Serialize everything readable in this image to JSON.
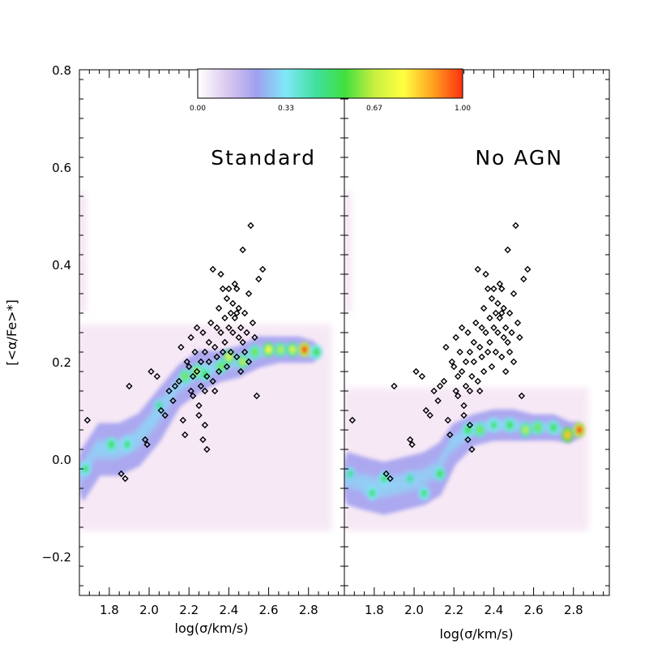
{
  "chart_data": {
    "type": "scatter",
    "ylabel": "[<α/Fe>*]",
    "ylim": [
      -0.28,
      0.8
    ],
    "yticks": [
      {
        "value": -0.2,
        "label": "−0.2"
      },
      {
        "value": 0.0,
        "label": "0.0"
      },
      {
        "value": 0.2,
        "label": "0.2"
      },
      {
        "value": 0.4,
        "label": "0.4"
      },
      {
        "value": 0.6,
        "label": "0.6"
      },
      {
        "value": 0.8,
        "label": "0.8"
      }
    ],
    "colorbar": {
      "ticks": [
        "0.00",
        "0.33",
        "0.67",
        "1.00"
      ],
      "colors": [
        "#ffffff",
        "#dcc8f0",
        "#a0a0f0",
        "#80e8f8",
        "#40e0a0",
        "#40e040",
        "#c8f040",
        "#ffff40",
        "#ffa020",
        "#ff3010"
      ]
    },
    "panels": [
      {
        "name": "standard",
        "title": "Standard",
        "xlabel": "log(σ/km/s)",
        "xlim": [
          1.65,
          2.98
        ],
        "xticks": [
          {
            "value": 1.8,
            "label": "1.8"
          },
          {
            "value": 2.0,
            "label": "2.0"
          },
          {
            "value": 2.2,
            "label": "2.2"
          },
          {
            "value": 2.4,
            "label": "2.4"
          },
          {
            "value": 2.6,
            "label": "2.6"
          },
          {
            "value": 2.8,
            "label": "2.8"
          }
        ],
        "model_ridge": [
          {
            "x": 1.67,
            "y": -0.03,
            "w": 0.05
          },
          {
            "x": 1.75,
            "y": 0.02,
            "w": 0.05
          },
          {
            "x": 1.85,
            "y": 0.02,
            "w": 0.05
          },
          {
            "x": 1.95,
            "y": 0.04,
            "w": 0.05
          },
          {
            "x": 2.05,
            "y": 0.09,
            "w": 0.05
          },
          {
            "x": 2.15,
            "y": 0.15,
            "w": 0.04
          },
          {
            "x": 2.25,
            "y": 0.18,
            "w": 0.04
          },
          {
            "x": 2.35,
            "y": 0.19,
            "w": 0.03
          },
          {
            "x": 2.45,
            "y": 0.2,
            "w": 0.03
          },
          {
            "x": 2.55,
            "y": 0.22,
            "w": 0.03
          },
          {
            "x": 2.65,
            "y": 0.225,
            "w": 0.025
          },
          {
            "x": 2.75,
            "y": 0.225,
            "w": 0.025
          },
          {
            "x": 2.83,
            "y": 0.22,
            "w": 0.02
          }
        ],
        "peaks": [
          {
            "x": 1.68,
            "y": -0.02,
            "v": 0.5
          },
          {
            "x": 1.81,
            "y": 0.03,
            "v": 0.55
          },
          {
            "x": 1.89,
            "y": 0.03,
            "v": 0.5
          },
          {
            "x": 2.05,
            "y": 0.11,
            "v": 0.45
          },
          {
            "x": 2.18,
            "y": 0.17,
            "v": 0.6
          },
          {
            "x": 2.24,
            "y": 0.18,
            "v": 0.65
          },
          {
            "x": 2.28,
            "y": 0.175,
            "v": 0.55
          },
          {
            "x": 2.36,
            "y": 0.19,
            "v": 0.6
          },
          {
            "x": 2.4,
            "y": 0.21,
            "v": 0.7
          },
          {
            "x": 2.47,
            "y": 0.2,
            "v": 0.65
          },
          {
            "x": 2.53,
            "y": 0.22,
            "v": 0.6
          },
          {
            "x": 2.6,
            "y": 0.225,
            "v": 0.75
          },
          {
            "x": 2.66,
            "y": 0.225,
            "v": 0.65
          },
          {
            "x": 2.72,
            "y": 0.225,
            "v": 0.7
          },
          {
            "x": 2.78,
            "y": 0.225,
            "v": 1.0
          },
          {
            "x": 2.84,
            "y": 0.22,
            "v": 0.55
          }
        ],
        "observations": [
          {
            "x": 1.69,
            "y": 0.08
          },
          {
            "x": 1.86,
            "y": -0.03
          },
          {
            "x": 1.88,
            "y": -0.04
          },
          {
            "x": 1.9,
            "y": 0.15
          },
          {
            "x": 1.98,
            "y": 0.04
          },
          {
            "x": 1.99,
            "y": 0.03
          },
          {
            "x": 2.01,
            "y": 0.18
          },
          {
            "x": 2.04,
            "y": 0.17
          },
          {
            "x": 2.06,
            "y": 0.1
          },
          {
            "x": 2.08,
            "y": 0.09
          },
          {
            "x": 2.1,
            "y": 0.14
          },
          {
            "x": 2.12,
            "y": 0.12
          },
          {
            "x": 2.13,
            "y": 0.15
          },
          {
            "x": 2.15,
            "y": 0.16
          },
          {
            "x": 2.16,
            "y": 0.23
          },
          {
            "x": 2.17,
            "y": 0.08
          },
          {
            "x": 2.18,
            "y": 0.05
          },
          {
            "x": 2.2,
            "y": 0.19
          },
          {
            "x": 2.21,
            "y": 0.14
          },
          {
            "x": 2.21,
            "y": 0.25
          },
          {
            "x": 2.22,
            "y": 0.13
          },
          {
            "x": 2.22,
            "y": 0.17
          },
          {
            "x": 2.23,
            "y": 0.22
          },
          {
            "x": 2.24,
            "y": 0.27
          },
          {
            "x": 2.24,
            "y": 0.18
          },
          {
            "x": 2.25,
            "y": 0.11
          },
          {
            "x": 2.26,
            "y": 0.2
          },
          {
            "x": 2.26,
            "y": 0.15
          },
          {
            "x": 2.27,
            "y": 0.26
          },
          {
            "x": 2.27,
            "y": 0.04
          },
          {
            "x": 2.28,
            "y": 0.14
          },
          {
            "x": 2.28,
            "y": 0.22
          },
          {
            "x": 2.29,
            "y": 0.17
          },
          {
            "x": 2.29,
            "y": 0.02
          },
          {
            "x": 2.3,
            "y": 0.2
          },
          {
            "x": 2.3,
            "y": 0.24
          },
          {
            "x": 2.31,
            "y": 0.28
          },
          {
            "x": 2.32,
            "y": 0.39
          },
          {
            "x": 2.32,
            "y": 0.16
          },
          {
            "x": 2.33,
            "y": 0.23
          },
          {
            "x": 2.34,
            "y": 0.27
          },
          {
            "x": 2.34,
            "y": 0.21
          },
          {
            "x": 2.35,
            "y": 0.31
          },
          {
            "x": 2.35,
            "y": 0.18
          },
          {
            "x": 2.36,
            "y": 0.26
          },
          {
            "x": 2.37,
            "y": 0.35
          },
          {
            "x": 2.37,
            "y": 0.22
          },
          {
            "x": 2.38,
            "y": 0.29
          },
          {
            "x": 2.38,
            "y": 0.24
          },
          {
            "x": 2.39,
            "y": 0.33
          },
          {
            "x": 2.39,
            "y": 0.19
          },
          {
            "x": 2.4,
            "y": 0.27
          },
          {
            "x": 2.4,
            "y": 0.35
          },
          {
            "x": 2.41,
            "y": 0.3
          },
          {
            "x": 2.41,
            "y": 0.22
          },
          {
            "x": 2.42,
            "y": 0.32
          },
          {
            "x": 2.42,
            "y": 0.26
          },
          {
            "x": 2.43,
            "y": 0.29
          },
          {
            "x": 2.43,
            "y": 0.36
          },
          {
            "x": 2.44,
            "y": 0.3
          },
          {
            "x": 2.44,
            "y": 0.21
          },
          {
            "x": 2.45,
            "y": 0.25
          },
          {
            "x": 2.45,
            "y": 0.31
          },
          {
            "x": 2.46,
            "y": 0.27
          },
          {
            "x": 2.46,
            "y": 0.18
          },
          {
            "x": 2.47,
            "y": 0.24
          },
          {
            "x": 2.48,
            "y": 0.3
          },
          {
            "x": 2.48,
            "y": 0.22
          },
          {
            "x": 2.49,
            "y": 0.26
          },
          {
            "x": 2.5,
            "y": 0.34
          },
          {
            "x": 2.5,
            "y": 0.2
          },
          {
            "x": 2.51,
            "y": 0.48
          },
          {
            "x": 2.52,
            "y": 0.28
          },
          {
            "x": 2.53,
            "y": 0.25
          },
          {
            "x": 2.54,
            "y": 0.13
          },
          {
            "x": 2.55,
            "y": 0.37
          },
          {
            "x": 2.57,
            "y": 0.39
          },
          {
            "x": 2.47,
            "y": 0.43
          },
          {
            "x": 2.36,
            "y": 0.38
          },
          {
            "x": 2.33,
            "y": 0.14
          },
          {
            "x": 2.25,
            "y": 0.09
          },
          {
            "x": 2.19,
            "y": 0.2
          },
          {
            "x": 2.28,
            "y": 0.07
          },
          {
            "x": 2.44,
            "y": 0.35
          }
        ]
      },
      {
        "name": "no-agn",
        "title": "No AGN",
        "xlabel": "log(σ/km/s)",
        "xlim": [
          1.65,
          2.98
        ],
        "xticks": [
          {
            "value": 1.8,
            "label": "1.8"
          },
          {
            "value": 2.0,
            "label": "2.0"
          },
          {
            "value": 2.2,
            "label": "2.2"
          },
          {
            "value": 2.4,
            "label": "2.4"
          },
          {
            "value": 2.6,
            "label": "2.6"
          },
          {
            "value": 2.8,
            "label": "2.8"
          }
        ],
        "model_ridge": [
          {
            "x": 1.67,
            "y": -0.04,
            "w": 0.05
          },
          {
            "x": 1.75,
            "y": -0.05,
            "w": 0.05
          },
          {
            "x": 1.85,
            "y": -0.06,
            "w": 0.05
          },
          {
            "x": 1.95,
            "y": -0.05,
            "w": 0.05
          },
          {
            "x": 2.05,
            "y": -0.04,
            "w": 0.05
          },
          {
            "x": 2.13,
            "y": -0.02,
            "w": 0.05
          },
          {
            "x": 2.2,
            "y": 0.03,
            "w": 0.04
          },
          {
            "x": 2.3,
            "y": 0.06,
            "w": 0.03
          },
          {
            "x": 2.4,
            "y": 0.07,
            "w": 0.03
          },
          {
            "x": 2.5,
            "y": 0.07,
            "w": 0.03
          },
          {
            "x": 2.6,
            "y": 0.065,
            "w": 0.025
          },
          {
            "x": 2.7,
            "y": 0.065,
            "w": 0.025
          },
          {
            "x": 2.78,
            "y": 0.055,
            "w": 0.02
          },
          {
            "x": 2.83,
            "y": 0.06,
            "w": 0.015
          }
        ],
        "peaks": [
          {
            "x": 1.68,
            "y": -0.03,
            "v": 0.45
          },
          {
            "x": 1.79,
            "y": -0.07,
            "v": 0.5
          },
          {
            "x": 1.85,
            "y": -0.04,
            "v": 0.5
          },
          {
            "x": 1.98,
            "y": -0.04,
            "v": 0.45
          },
          {
            "x": 2.05,
            "y": -0.07,
            "v": 0.5
          },
          {
            "x": 2.13,
            "y": -0.03,
            "v": 0.55
          },
          {
            "x": 2.27,
            "y": 0.06,
            "v": 0.55
          },
          {
            "x": 2.33,
            "y": 0.06,
            "v": 0.6
          },
          {
            "x": 2.4,
            "y": 0.07,
            "v": 0.5
          },
          {
            "x": 2.48,
            "y": 0.07,
            "v": 0.55
          },
          {
            "x": 2.56,
            "y": 0.06,
            "v": 0.65
          },
          {
            "x": 2.62,
            "y": 0.065,
            "v": 0.6
          },
          {
            "x": 2.7,
            "y": 0.065,
            "v": 0.55
          },
          {
            "x": 2.77,
            "y": 0.05,
            "v": 0.85
          },
          {
            "x": 2.83,
            "y": 0.06,
            "v": 1.0
          }
        ],
        "observations": [
          {
            "x": 1.69,
            "y": 0.08
          },
          {
            "x": 1.86,
            "y": -0.03
          },
          {
            "x": 1.88,
            "y": -0.04
          },
          {
            "x": 1.9,
            "y": 0.15
          },
          {
            "x": 1.98,
            "y": 0.04
          },
          {
            "x": 1.99,
            "y": 0.03
          },
          {
            "x": 2.01,
            "y": 0.18
          },
          {
            "x": 2.04,
            "y": 0.17
          },
          {
            "x": 2.06,
            "y": 0.1
          },
          {
            "x": 2.08,
            "y": 0.09
          },
          {
            "x": 2.1,
            "y": 0.14
          },
          {
            "x": 2.12,
            "y": 0.12
          },
          {
            "x": 2.13,
            "y": 0.15
          },
          {
            "x": 2.15,
            "y": 0.16
          },
          {
            "x": 2.16,
            "y": 0.23
          },
          {
            "x": 2.17,
            "y": 0.08
          },
          {
            "x": 2.18,
            "y": 0.05
          },
          {
            "x": 2.2,
            "y": 0.19
          },
          {
            "x": 2.21,
            "y": 0.14
          },
          {
            "x": 2.21,
            "y": 0.25
          },
          {
            "x": 2.22,
            "y": 0.13
          },
          {
            "x": 2.22,
            "y": 0.17
          },
          {
            "x": 2.23,
            "y": 0.22
          },
          {
            "x": 2.24,
            "y": 0.27
          },
          {
            "x": 2.24,
            "y": 0.18
          },
          {
            "x": 2.25,
            "y": 0.11
          },
          {
            "x": 2.26,
            "y": 0.2
          },
          {
            "x": 2.26,
            "y": 0.15
          },
          {
            "x": 2.27,
            "y": 0.26
          },
          {
            "x": 2.27,
            "y": 0.04
          },
          {
            "x": 2.28,
            "y": 0.14
          },
          {
            "x": 2.28,
            "y": 0.22
          },
          {
            "x": 2.29,
            "y": 0.17
          },
          {
            "x": 2.29,
            "y": 0.02
          },
          {
            "x": 2.3,
            "y": 0.2
          },
          {
            "x": 2.3,
            "y": 0.24
          },
          {
            "x": 2.31,
            "y": 0.28
          },
          {
            "x": 2.32,
            "y": 0.39
          },
          {
            "x": 2.32,
            "y": 0.16
          },
          {
            "x": 2.33,
            "y": 0.23
          },
          {
            "x": 2.34,
            "y": 0.27
          },
          {
            "x": 2.34,
            "y": 0.21
          },
          {
            "x": 2.35,
            "y": 0.31
          },
          {
            "x": 2.35,
            "y": 0.18
          },
          {
            "x": 2.36,
            "y": 0.26
          },
          {
            "x": 2.37,
            "y": 0.35
          },
          {
            "x": 2.37,
            "y": 0.22
          },
          {
            "x": 2.38,
            "y": 0.29
          },
          {
            "x": 2.38,
            "y": 0.24
          },
          {
            "x": 2.39,
            "y": 0.33
          },
          {
            "x": 2.39,
            "y": 0.19
          },
          {
            "x": 2.4,
            "y": 0.27
          },
          {
            "x": 2.4,
            "y": 0.35
          },
          {
            "x": 2.41,
            "y": 0.3
          },
          {
            "x": 2.41,
            "y": 0.22
          },
          {
            "x": 2.42,
            "y": 0.32
          },
          {
            "x": 2.42,
            "y": 0.26
          },
          {
            "x": 2.43,
            "y": 0.29
          },
          {
            "x": 2.43,
            "y": 0.36
          },
          {
            "x": 2.44,
            "y": 0.3
          },
          {
            "x": 2.44,
            "y": 0.21
          },
          {
            "x": 2.45,
            "y": 0.25
          },
          {
            "x": 2.45,
            "y": 0.31
          },
          {
            "x": 2.46,
            "y": 0.27
          },
          {
            "x": 2.46,
            "y": 0.18
          },
          {
            "x": 2.47,
            "y": 0.24
          },
          {
            "x": 2.48,
            "y": 0.3
          },
          {
            "x": 2.48,
            "y": 0.22
          },
          {
            "x": 2.49,
            "y": 0.26
          },
          {
            "x": 2.5,
            "y": 0.34
          },
          {
            "x": 2.5,
            "y": 0.2
          },
          {
            "x": 2.51,
            "y": 0.48
          },
          {
            "x": 2.52,
            "y": 0.28
          },
          {
            "x": 2.53,
            "y": 0.25
          },
          {
            "x": 2.54,
            "y": 0.13
          },
          {
            "x": 2.55,
            "y": 0.37
          },
          {
            "x": 2.57,
            "y": 0.39
          },
          {
            "x": 2.47,
            "y": 0.43
          },
          {
            "x": 2.36,
            "y": 0.38
          },
          {
            "x": 2.33,
            "y": 0.14
          },
          {
            "x": 2.25,
            "y": 0.09
          },
          {
            "x": 2.19,
            "y": 0.2
          },
          {
            "x": 2.28,
            "y": 0.07
          },
          {
            "x": 2.44,
            "y": 0.35
          }
        ]
      }
    ]
  }
}
